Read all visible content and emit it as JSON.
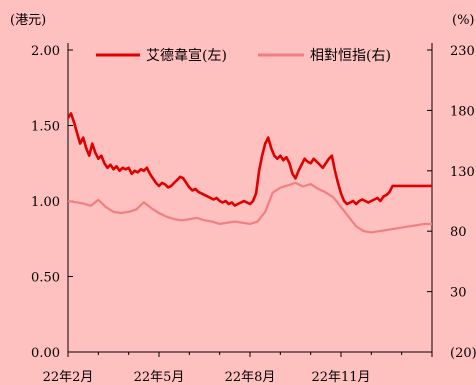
{
  "chart_data": {
    "type": "line",
    "left_unit": "(港元)",
    "right_unit": "(%)",
    "x_labels": [
      "22年2月",
      "22年5月",
      "22年8月",
      "22年11月"
    ],
    "y_left_ticks": [
      "0.00",
      "0.50",
      "1.00",
      "1.50",
      "2.00"
    ],
    "y_right_ticks": [
      "(20)",
      "30",
      "80",
      "130",
      "180",
      "230"
    ],
    "ylim_left": [
      0,
      2.0
    ],
    "ylim_right": [
      -20,
      230
    ],
    "x_range_months": [
      0,
      12
    ],
    "legend_position": "top",
    "grid": false,
    "series": [
      {
        "name": "艾德韋宣(左)",
        "axis": "left",
        "color": "#E00000",
        "x": [
          0.0,
          0.1,
          0.2,
          0.3,
          0.4,
          0.5,
          0.6,
          0.7,
          0.8,
          0.9,
          1.0,
          1.1,
          1.2,
          1.3,
          1.4,
          1.5,
          1.6,
          1.7,
          1.8,
          1.9,
          2.0,
          2.1,
          2.2,
          2.3,
          2.4,
          2.5,
          2.6,
          2.7,
          2.8,
          2.9,
          3.0,
          3.1,
          3.2,
          3.3,
          3.4,
          3.5,
          3.6,
          3.7,
          3.8,
          3.9,
          4.0,
          4.1,
          4.2,
          4.3,
          4.4,
          4.5,
          4.6,
          4.7,
          4.8,
          4.9,
          5.0,
          5.1,
          5.2,
          5.3,
          5.4,
          5.5,
          5.6,
          5.7,
          5.8,
          5.9,
          6.0,
          6.1,
          6.2,
          6.3,
          6.4,
          6.5,
          6.6,
          6.7,
          6.8,
          6.9,
          7.0,
          7.1,
          7.2,
          7.3,
          7.4,
          7.5,
          7.6,
          7.7,
          7.8,
          7.9,
          8.0,
          8.1,
          8.2,
          8.3,
          8.4,
          8.5,
          8.6,
          8.7,
          8.8,
          8.9,
          9.0,
          9.1,
          9.2,
          9.3,
          9.4,
          9.5,
          9.6,
          9.7,
          9.8,
          9.9,
          10.0,
          10.1,
          10.2,
          10.3,
          10.4,
          10.5,
          10.6,
          10.7,
          10.8,
          10.9,
          11.0,
          11.1,
          11.2,
          11.3,
          11.4,
          11.5,
          11.6,
          11.7,
          11.8,
          11.9,
          12.0
        ],
        "values": [
          1.55,
          1.58,
          1.52,
          1.45,
          1.38,
          1.42,
          1.35,
          1.3,
          1.38,
          1.32,
          1.28,
          1.3,
          1.25,
          1.22,
          1.24,
          1.21,
          1.23,
          1.2,
          1.22,
          1.21,
          1.22,
          1.18,
          1.2,
          1.19,
          1.21,
          1.2,
          1.22,
          1.18,
          1.15,
          1.12,
          1.1,
          1.12,
          1.11,
          1.09,
          1.1,
          1.12,
          1.14,
          1.16,
          1.15,
          1.12,
          1.09,
          1.07,
          1.08,
          1.06,
          1.05,
          1.04,
          1.03,
          1.02,
          1.01,
          1.02,
          1.0,
          0.99,
          1.0,
          0.98,
          0.99,
          0.97,
          0.98,
          0.99,
          1.0,
          0.99,
          0.98,
          1.0,
          1.05,
          1.2,
          1.3,
          1.38,
          1.42,
          1.35,
          1.3,
          1.28,
          1.3,
          1.27,
          1.29,
          1.25,
          1.18,
          1.15,
          1.2,
          1.24,
          1.28,
          1.26,
          1.25,
          1.28,
          1.26,
          1.24,
          1.22,
          1.25,
          1.28,
          1.3,
          1.2,
          1.12,
          1.05,
          1.0,
          0.98,
          0.99,
          1.0,
          0.98,
          1.0,
          1.01,
          1.0,
          0.99,
          1.0,
          1.01,
          1.02,
          1.0,
          1.03,
          1.04,
          1.06,
          1.1,
          1.1,
          1.1,
          1.1,
          1.1,
          1.1,
          1.1,
          1.1,
          1.1,
          1.1,
          1.1,
          1.1,
          1.1,
          1.1
        ]
      },
      {
        "name": "相對恒指(右)",
        "axis": "right",
        "color": "#F08080",
        "x": [
          0.0,
          0.25,
          0.5,
          0.75,
          1.0,
          1.25,
          1.5,
          1.75,
          2.0,
          2.25,
          2.5,
          2.75,
          3.0,
          3.25,
          3.5,
          3.75,
          4.0,
          4.25,
          4.5,
          4.75,
          5.0,
          5.25,
          5.5,
          5.75,
          6.0,
          6.25,
          6.5,
          6.75,
          7.0,
          7.25,
          7.5,
          7.75,
          8.0,
          8.25,
          8.5,
          8.75,
          9.0,
          9.25,
          9.5,
          9.75,
          10.0,
          10.25,
          10.5,
          10.75,
          11.0,
          11.25,
          11.5,
          11.75,
          12.0
        ],
        "values": [
          105,
          104,
          103,
          101,
          106,
          100,
          96,
          95,
          96,
          98,
          104,
          99,
          95,
          92,
          90,
          89,
          90,
          91,
          89,
          88,
          86,
          87,
          88,
          87,
          86,
          88,
          96,
          112,
          116,
          118,
          120,
          117,
          119,
          115,
          112,
          108,
          100,
          92,
          84,
          80,
          79,
          80,
          81,
          82,
          83,
          84,
          85,
          86,
          86
        ]
      }
    ]
  }
}
